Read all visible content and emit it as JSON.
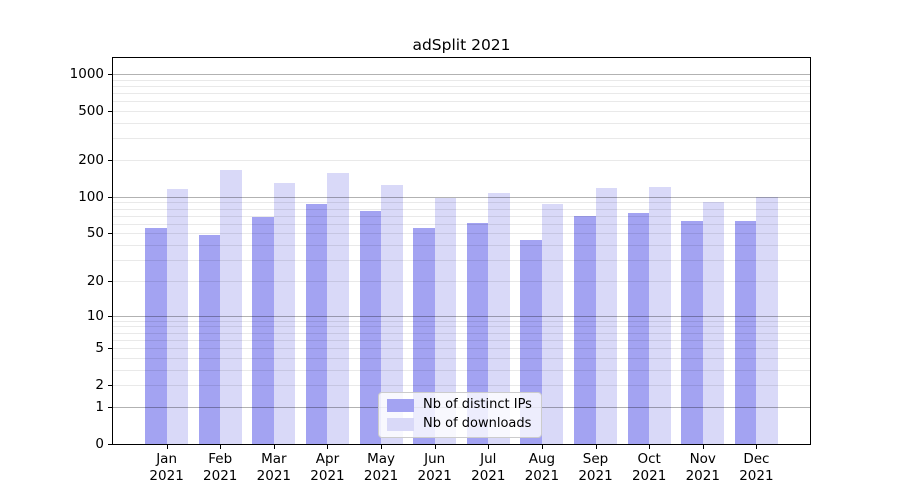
{
  "title": "adSplit 2021",
  "legend": {
    "items": [
      {
        "label": "Nb of distinct IPs"
      },
      {
        "label": "Nb of downloads"
      }
    ]
  },
  "colors": {
    "distinct_ips_bar": "#a3a3f2",
    "downloads_bar": "#d9d9f8",
    "grid_major": "#ababab",
    "grid_minor": "#ececec",
    "axis_line": "#000000",
    "text": "#000000",
    "legend_border": "#cccccc",
    "legend_background": "rgba(255,255,255,0.8)"
  },
  "chart_data": {
    "type": "bar",
    "title": "adSplit 2021",
    "categories": [
      "Jan 2021",
      "Feb 2021",
      "Mar 2021",
      "Apr 2021",
      "May 2021",
      "Jun 2021",
      "Jul 2021",
      "Aug 2021",
      "Sep 2021",
      "Oct 2021",
      "Nov 2021",
      "Dec 2021"
    ],
    "series": [
      {
        "name": "Nb of distinct IPs",
        "color": "#a3a3f2",
        "values": [
          55,
          49,
          69,
          87,
          77,
          55,
          61,
          44,
          70,
          74,
          63,
          63
        ]
      },
      {
        "name": "Nb of downloads",
        "color": "#d9d9f8",
        "values": [
          115,
          167,
          130,
          157,
          125,
          98,
          107,
          88,
          118,
          120,
          90,
          100
        ]
      }
    ],
    "xlabel": "",
    "ylabel": "",
    "yscale": "log10(1+y)",
    "ylim": [
      0,
      1350
    ],
    "yticks": [
      0,
      1,
      2,
      5,
      10,
      20,
      50,
      100,
      200,
      500,
      1000
    ],
    "grid": true,
    "grid_over_bars": true,
    "legend_position": "lower center",
    "bar_width_fraction": 0.4
  }
}
